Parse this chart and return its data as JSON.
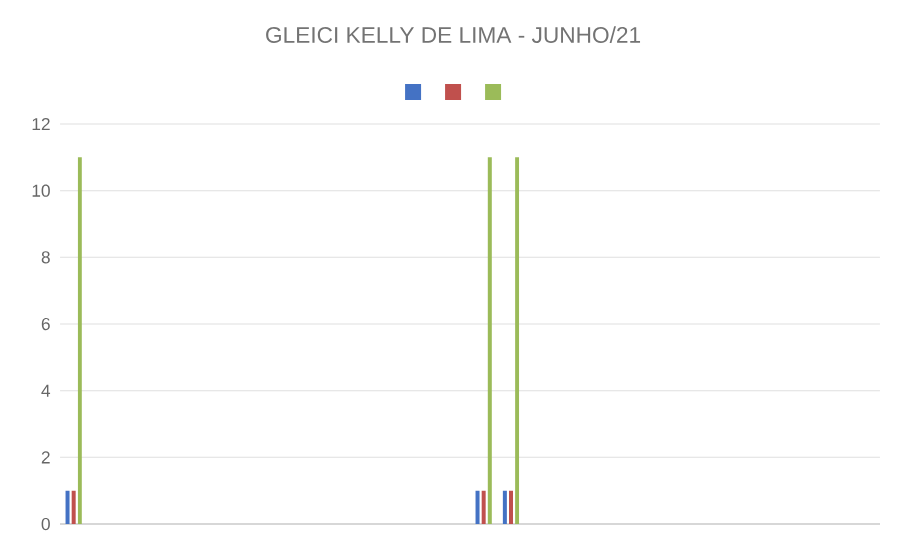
{
  "chart_data": {
    "type": "bar",
    "title": "GLEICI KELLY DE LIMA - JUNHO/21",
    "categories": [
      null,
      null,
      null,
      null,
      null,
      null,
      null,
      null,
      null,
      null,
      null,
      null,
      null,
      null,
      null,
      null,
      null,
      null,
      null,
      null,
      null,
      null,
      null,
      null,
      null,
      null,
      null,
      null,
      null,
      null
    ],
    "series": [
      {
        "color": "#4472c4",
        "values": [
          1,
          null,
          null,
          null,
          null,
          null,
          null,
          null,
          null,
          null,
          null,
          null,
          null,
          null,
          null,
          1,
          1,
          null,
          null,
          null,
          null,
          null,
          null,
          null,
          null,
          null,
          null,
          null,
          null,
          null
        ]
      },
      {
        "color": "#c0504d",
        "values": [
          1,
          null,
          null,
          null,
          null,
          null,
          null,
          null,
          null,
          null,
          null,
          null,
          null,
          null,
          null,
          1,
          1,
          null,
          null,
          null,
          null,
          null,
          null,
          null,
          null,
          null,
          null,
          null,
          null,
          null
        ]
      },
      {
        "color": "#9bbb59",
        "values": [
          11,
          null,
          null,
          null,
          null,
          null,
          null,
          null,
          null,
          null,
          null,
          null,
          null,
          null,
          null,
          11,
          11,
          null,
          null,
          null,
          null,
          null,
          null,
          null,
          null,
          null,
          null,
          null,
          null,
          null
        ]
      }
    ],
    "ylim": [
      0,
      12
    ],
    "yticks": [
      0,
      2,
      4,
      6,
      8,
      10,
      12
    ],
    "grid": "y"
  }
}
